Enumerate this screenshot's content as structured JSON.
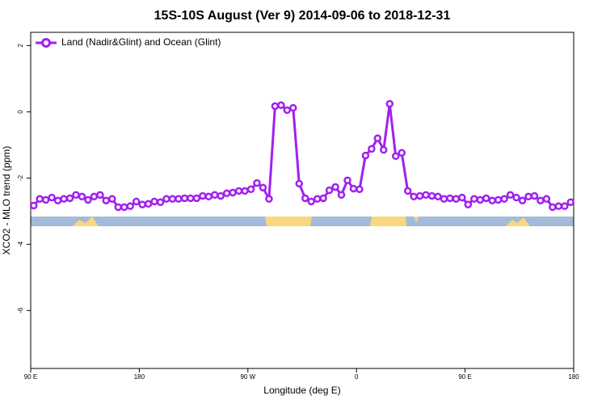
{
  "chart_data": {
    "type": "line",
    "title": "15S-10S August (Ver 9)   2014-09-06 to 2018-12-31",
    "xlabel": "Longitude (deg E)",
    "ylabel": "XCO2 - MLO trend (ppm)",
    "xlim": [
      90,
      540
    ],
    "ylim": [
      -7.75,
      2.4
    ],
    "xticks": [
      {
        "value": 90,
        "label": "90 E"
      },
      {
        "value": 180,
        "label": "180"
      },
      {
        "value": 270,
        "label": "90 W"
      },
      {
        "value": 360,
        "label": "0"
      },
      {
        "value": 450,
        "label": "90 E"
      },
      {
        "value": 540,
        "label": "180"
      }
    ],
    "yticks": [
      2,
      0,
      -2,
      -4,
      -6
    ],
    "legend": "top-left",
    "x": [
      92.5,
      97.5,
      102.5,
      107.5,
      112.5,
      117.5,
      122.5,
      127.5,
      132.5,
      137.5,
      142.5,
      147.5,
      152.5,
      157.5,
      162.5,
      167.5,
      172.5,
      177.5,
      182.5,
      187.5,
      192.5,
      197.5,
      202.5,
      207.5,
      212.5,
      217.5,
      222.5,
      227.5,
      232.5,
      237.5,
      242.5,
      247.5,
      252.5,
      257.5,
      262.5,
      267.5,
      272.5,
      277.5,
      282.5,
      287.5,
      292.5,
      297.5,
      302.5,
      307.5,
      312.5,
      317.5,
      322.5,
      327.5,
      332.5,
      337.5,
      342.5,
      347.5,
      352.5,
      357.5,
      362.5,
      367.5,
      372.5,
      377.5,
      382.5,
      387.5,
      392.5,
      397.5,
      402.5,
      407.5,
      412.5,
      417.5,
      422.5,
      427.5,
      432.5,
      437.5,
      442.5,
      447.5,
      452.5,
      457.5,
      462.5,
      467.5,
      472.5,
      477.5,
      482.5,
      487.5,
      492.5,
      497.5,
      502.5,
      507.5,
      512.5,
      517.5,
      522.5,
      527.5,
      532.5,
      537.5
    ],
    "series": [
      {
        "name": "Land (Nadir&Glint) and Ocean (Glint)",
        "color": "#a020f0",
        "values": [
          -2.83,
          -2.63,
          -2.66,
          -2.59,
          -2.68,
          -2.63,
          -2.61,
          -2.51,
          -2.56,
          -2.66,
          -2.56,
          -2.51,
          -2.68,
          -2.63,
          -2.88,
          -2.88,
          -2.85,
          -2.71,
          -2.8,
          -2.78,
          -2.71,
          -2.73,
          -2.63,
          -2.63,
          -2.63,
          -2.61,
          -2.61,
          -2.61,
          -2.54,
          -2.56,
          -2.51,
          -2.54,
          -2.46,
          -2.44,
          -2.39,
          -2.39,
          -2.34,
          -2.15,
          -2.29,
          -2.63,
          0.17,
          0.2,
          0.05,
          0.12,
          -2.17,
          -2.61,
          -2.71,
          -2.63,
          -2.61,
          -2.37,
          -2.27,
          -2.51,
          -2.07,
          -2.32,
          -2.34,
          -1.32,
          -1.12,
          -0.8,
          -1.15,
          0.24,
          -1.34,
          -1.24,
          -2.39,
          -2.56,
          -2.54,
          -2.51,
          -2.54,
          -2.56,
          -2.63,
          -2.61,
          -2.63,
          -2.59,
          -2.8,
          -2.63,
          -2.66,
          -2.61,
          -2.68,
          -2.66,
          -2.63,
          -2.51,
          -2.59,
          -2.68,
          -2.56,
          -2.54,
          -2.68,
          -2.63,
          -2.88,
          -2.85,
          -2.85,
          -2.73
        ]
      }
    ]
  }
}
